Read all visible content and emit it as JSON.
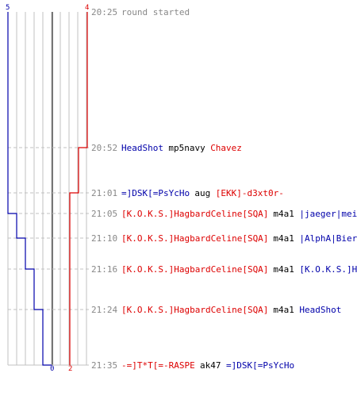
{
  "colors": {
    "team_a": "#0000aa",
    "team_b": "#dd0000",
    "time": "#888888",
    "grid": "#c0c0c0",
    "center": "#777777",
    "text": "#000000"
  },
  "axis": {
    "max_a": 5,
    "max_b": 4
  },
  "events": [
    {
      "time": "20:25",
      "type": "start",
      "label": "round started"
    },
    {
      "time": "20:52",
      "killer": "HeadShot",
      "killer_team": "a",
      "weapon": "mp5navy",
      "victim": "Chavez",
      "victim_team": "b"
    },
    {
      "time": "21:01",
      "killer": "=]DSK[=PsYcHo",
      "killer_team": "a",
      "weapon": "aug",
      "victim": "[EKK]-d3xt0r-",
      "victim_team": "b"
    },
    {
      "time": "21:05",
      "killer": "[K.O.K.S.]HagbardCeline[SQA]",
      "killer_team": "b",
      "weapon": "m4a1",
      "victim": "|jaeger|meister",
      "victim_team": "a"
    },
    {
      "time": "21:10",
      "killer": "[K.O.K.S.]HagbardCeline[SQA]",
      "killer_team": "b",
      "weapon": "m4a1",
      "victim": "|AlphA|Bierkoenig",
      "victim_team": "a"
    },
    {
      "time": "21:16",
      "killer": "[K.O.K.S.]HagbardCeline[SQA]",
      "killer_team": "b",
      "weapon": "m4a1",
      "victim": "[K.O.K.S.]Hoad[SQB]",
      "victim_team": "a"
    },
    {
      "time": "21:24",
      "killer": "[K.O.K.S.]HagbardCeline[SQA]",
      "killer_team": "b",
      "weapon": "m4a1",
      "victim": "HeadShot",
      "victim_team": "a"
    },
    {
      "time": "21:35",
      "killer": "-=]T*T[=-RASPE",
      "killer_team": "b",
      "weapon": "ak47",
      "victim": "=]DSK[=PsYcHo",
      "victim_team": "a"
    }
  ],
  "chart_data": {
    "type": "line",
    "x": [
      "20:25",
      "20:52",
      "21:01",
      "21:05",
      "21:10",
      "21:16",
      "21:24",
      "21:35"
    ],
    "series": [
      {
        "team": "a",
        "values": [
          5,
          5,
          5,
          4,
          3,
          2,
          1,
          0
        ]
      },
      {
        "team": "b",
        "values": [
          4,
          3,
          2,
          2,
          2,
          2,
          2,
          2
        ]
      }
    ],
    "start_labels": {
      "a": "5",
      "b": "4"
    },
    "end_labels": {
      "a": "0",
      "b": "2"
    }
  }
}
